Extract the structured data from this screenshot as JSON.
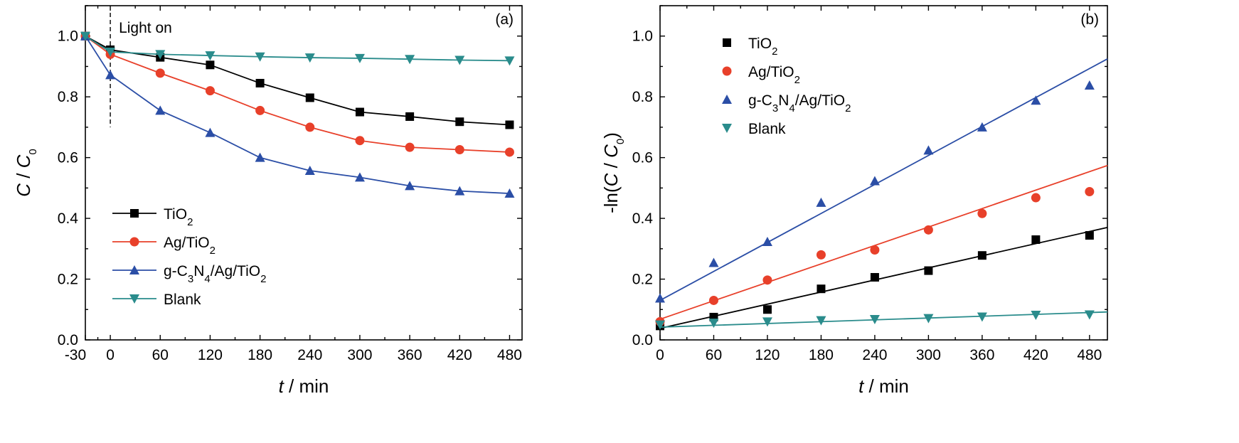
{
  "chart_data": [
    {
      "panel_label": "(a)",
      "type": "line",
      "xlabel": {
        "var": "t",
        "rest": " / min"
      },
      "ylabel": {
        "a": "C",
        "sep": " / ",
        "b": "C",
        "sub": "0"
      },
      "xlim": [
        -30,
        495
      ],
      "ylim": [
        0,
        1.1
      ],
      "xticks": [
        -30,
        0,
        60,
        120,
        180,
        240,
        300,
        360,
        420,
        480
      ],
      "yticks": [
        0.0,
        0.2,
        0.4,
        0.6,
        0.8,
        1.0
      ],
      "ytick_labels": [
        "0.0",
        "0.2",
        "0.4",
        "0.6",
        "0.8",
        "1.0"
      ],
      "annotation": {
        "text": "Light on",
        "x": 0
      },
      "legend_position": "lower-left",
      "series": [
        {
          "name": "TiO2",
          "name_parts": [
            [
              "TiO",
              ""
            ],
            [
              "2",
              "sub"
            ]
          ],
          "marker": "square",
          "color": "#000000",
          "x": [
            -30,
            0,
            60,
            120,
            180,
            240,
            300,
            360,
            420,
            480
          ],
          "y": [
            1.0,
            0.955,
            0.93,
            0.905,
            0.845,
            0.797,
            0.75,
            0.735,
            0.718,
            0.708
          ]
        },
        {
          "name": "Ag/TiO2",
          "name_parts": [
            [
              "Ag/TiO",
              ""
            ],
            [
              "2",
              "sub"
            ]
          ],
          "marker": "circle",
          "color": "#e8402a",
          "x": [
            -30,
            0,
            60,
            120,
            180,
            240,
            300,
            360,
            420,
            480
          ],
          "y": [
            1.0,
            0.94,
            0.878,
            0.82,
            0.755,
            0.7,
            0.656,
            0.634,
            0.626,
            0.618
          ]
        },
        {
          "name": "g-C3N4/Ag/TiO2",
          "name_parts": [
            [
              "g-C",
              ""
            ],
            [
              "3",
              "sub"
            ],
            [
              "N",
              ""
            ],
            [
              "4",
              "sub"
            ],
            [
              "/Ag/TiO",
              ""
            ],
            [
              "2",
              "sub"
            ]
          ],
          "marker": "triangle-up",
          "color": "#2b4ea6",
          "x": [
            -30,
            0,
            60,
            120,
            180,
            240,
            300,
            360,
            420,
            480
          ],
          "y": [
            1.0,
            0.872,
            0.755,
            0.682,
            0.6,
            0.557,
            0.535,
            0.507,
            0.49,
            0.482
          ]
        },
        {
          "name": "Blank",
          "name_parts": [
            [
              "Blank",
              ""
            ]
          ],
          "marker": "triangle-down",
          "color": "#2a8c8c",
          "x": [
            -30,
            0,
            60,
            120,
            180,
            240,
            300,
            360,
            420,
            480
          ],
          "y": [
            1.0,
            0.948,
            0.94,
            0.936,
            0.932,
            0.929,
            0.927,
            0.924,
            0.921,
            0.919
          ]
        }
      ]
    },
    {
      "panel_label": "(b)",
      "type": "scatter",
      "xlabel": {
        "var": "t",
        "rest": " / min"
      },
      "ylabel": {
        "pre": "-ln(",
        "a": "C",
        "sep": " / ",
        "b": "C",
        "sub": "0",
        "post": ")"
      },
      "xlim": [
        0,
        500
      ],
      "ylim": [
        0,
        1.1
      ],
      "xticks": [
        0,
        60,
        120,
        180,
        240,
        300,
        360,
        420,
        480
      ],
      "yticks": [
        0.0,
        0.2,
        0.4,
        0.6,
        0.8,
        1.0
      ],
      "ytick_labels": [
        "0.0",
        "0.2",
        "0.4",
        "0.6",
        "0.8",
        "1.0"
      ],
      "legend_position": "upper-left",
      "series": [
        {
          "name": "TiO2",
          "name_parts": [
            [
              "TiO",
              ""
            ],
            [
              "2",
              "sub"
            ]
          ],
          "marker": "square",
          "color": "#000000",
          "x": [
            0,
            60,
            120,
            180,
            240,
            300,
            360,
            420,
            480
          ],
          "y": [
            0.046,
            0.075,
            0.1,
            0.168,
            0.206,
            0.228,
            0.278,
            0.33,
            0.344
          ],
          "fit": [
            [
              0,
              0.038
            ],
            [
              500,
              0.37
            ]
          ]
        },
        {
          "name": "Ag/TiO2",
          "name_parts": [
            [
              "Ag/TiO",
              ""
            ],
            [
              "2",
              "sub"
            ]
          ],
          "marker": "circle",
          "color": "#e8402a",
          "x": [
            0,
            60,
            120,
            180,
            240,
            300,
            360,
            420,
            480
          ],
          "y": [
            0.06,
            0.13,
            0.197,
            0.28,
            0.296,
            0.362,
            0.416,
            0.468,
            0.488
          ],
          "fit": [
            [
              0,
              0.068
            ],
            [
              500,
              0.574
            ]
          ]
        },
        {
          "name": "g-C3N4/Ag/TiO2",
          "name_parts": [
            [
              "g-C",
              ""
            ],
            [
              "3",
              "sub"
            ],
            [
              "N",
              ""
            ],
            [
              "4",
              "sub"
            ],
            [
              "/Ag/TiO",
              ""
            ],
            [
              "2",
              "sub"
            ]
          ],
          "marker": "triangle-up",
          "color": "#2b4ea6",
          "x": [
            0,
            60,
            120,
            180,
            240,
            300,
            360,
            420,
            480
          ],
          "y": [
            0.137,
            0.254,
            0.323,
            0.452,
            0.523,
            0.624,
            0.7,
            0.788,
            0.838
          ],
          "fit": [
            [
              0,
              0.13
            ],
            [
              500,
              0.925
            ]
          ]
        },
        {
          "name": "Blank",
          "name_parts": [
            [
              "Blank",
              ""
            ]
          ],
          "marker": "triangle-down",
          "color": "#2a8c8c",
          "x": [
            0,
            60,
            120,
            180,
            240,
            300,
            360,
            420,
            480
          ],
          "y": [
            0.05,
            0.056,
            0.06,
            0.064,
            0.068,
            0.071,
            0.076,
            0.082,
            0.083
          ],
          "fit": [
            [
              0,
              0.042
            ],
            [
              500,
              0.092
            ]
          ]
        }
      ]
    }
  ]
}
